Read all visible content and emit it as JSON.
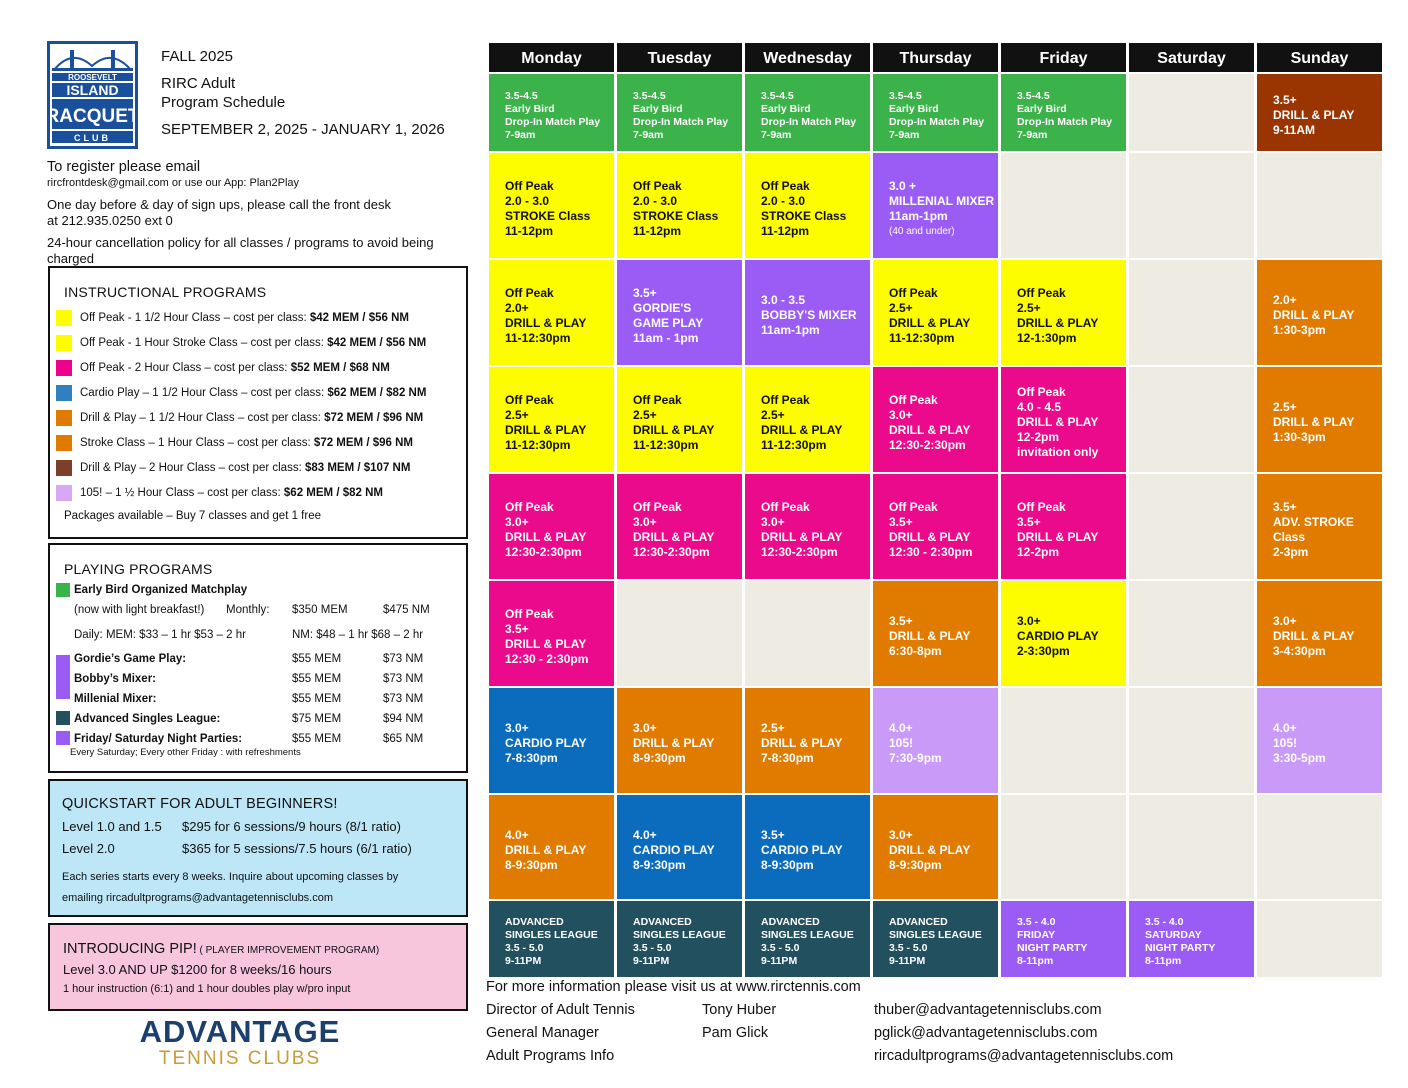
{
  "header": {
    "season": "FALL 2025",
    "program_line1": "RIRC Adult",
    "program_line2": "Program Schedule",
    "dates": "SEPTEMBER 2, 2025 - JANUARY 1, 2026"
  },
  "logo": {
    "line1": "ROOSEVELT",
    "line2": "ISLAND",
    "line3": "RACQUET",
    "line4": "CLUB"
  },
  "register": {
    "line1": "To register please email",
    "line2": "rircfrontdesk@gmail.com or use our App:  Plan2Play",
    "line3": "One day before & day of sign ups, please call the front desk",
    "line4": "at 212.935.0250 ext 0",
    "line5": "24-hour cancellation policy for all classes / programs to avoid being",
    "line6": "charged"
  },
  "instructional": {
    "title": "INSTRUCTIONAL PROGRAMS",
    "items": [
      {
        "color": "#fdfd00",
        "text": "Off Peak - 1 1/2 Hour Class – cost per class: ",
        "price": "$42 MEM / $56 NM"
      },
      {
        "color": "#fdfd00",
        "text": "Off Peak - 1 Hour Stroke Class – cost per class: ",
        "price": "$42 MEM / $56 NM"
      },
      {
        "color": "#ec008c",
        "text": "Off Peak - 2 Hour Class – cost per class: ",
        "price": "$52 MEM / $68 NM"
      },
      {
        "color": "#2f7fc1",
        "text": "Cardio Play – 1 1/2 Hour Class – cost per class: ",
        "price": "$62 MEM / $82 NM"
      },
      {
        "color": "#e07b00",
        "text": "Drill & Play – 1 1/2 Hour Class – cost per class:  ",
        "price": "$72 MEM / $96 NM"
      },
      {
        "color": "#e07b00",
        "text": "Stroke Class – 1  Hour Class – cost per class:  ",
        "price": "$72 MEM / $96 NM"
      },
      {
        "color": "#7b3f2a",
        "text": "Drill & Play – 2 Hour Class – cost per class: ",
        "price": "$83 MEM / $107 NM"
      },
      {
        "color": "#d7a8f5",
        "text": "105! – 1 ½ Hour Class – cost per class:  ",
        "price": "$62 MEM / $82  NM"
      }
    ],
    "packages": "Packages available – Buy 7 classes and get 1 free"
  },
  "playing": {
    "title": "PLAYING PROGRAMS",
    "early_bird": "Early Bird Organized Matchplay",
    "breakfast": "(now with light breakfast!)",
    "monthly_label": "Monthly:",
    "monthly_mem": "$350 MEM",
    "monthly_nm": "$475 NM",
    "daily_mem": "Daily: MEM: $33 – 1 hr  $53 – 2 hr",
    "daily_nm": "NM: $48 – 1 hr  $68 – 2 hr",
    "rows": [
      {
        "name": "Gordie’s Game Play:",
        "mem": "$55 MEM",
        "nm": "$73 NM"
      },
      {
        "name": "Bobby’s Mixer:",
        "mem": "$55 MEM",
        "nm": "$73 NM"
      },
      {
        "name": "Millenial Mixer:",
        "mem": "$55 MEM",
        "nm": "$73 NM"
      },
      {
        "name": "Advanced Singles League:",
        "mem": "$75 MEM",
        "nm": "$94 NM"
      },
      {
        "name": "Friday/ Saturday Night Parties:",
        "mem": "$55 MEM",
        "nm": "$65 NM"
      }
    ],
    "party_note": "Every Saturday; Every other Friday : with refreshments",
    "colors": {
      "early_bird": "#3cb34a",
      "mixer": "#9b5cf6",
      "league": "#22505f"
    }
  },
  "quickstart": {
    "title": "QUICKSTART FOR ADULT BEGINNERS!",
    "level1_label": "Level 1.0  and 1.5",
    "level1_price": "$295 for 6 sessions/9 hours (8/1 ratio)",
    "level2_label": "Level 2.0",
    "level2_price": "$365 for 5 sessions/7.5 hours (6/1 ratio)",
    "note1": "Each series starts every 8 weeks.  Inquire about upcoming classes  by",
    "note2": "emailing rircadultprograms@advantagetennisclubs.com",
    "bg": "#bde6f7"
  },
  "pip": {
    "title": "INTRODUCING PIP!",
    "subtitle": " ( PLAYER IMPROVEMENT PROGRAM)",
    "line1": "Level 3.0 AND UP  $1200 for 8 weeks/16 hours",
    "line2": "1 hour instruction (6:1) and  1 hour doubles play w/pro input",
    "bg": "#f7c6dc"
  },
  "advantage": {
    "word1": "ADVANTAGE",
    "word2": "TENNIS CLUBS"
  },
  "days": [
    "Monday",
    "Tuesday",
    "Wednesday",
    "Thursday",
    "Friday",
    "Saturday",
    "Sunday"
  ],
  "schedule": [
    [
      {
        "lines": [
          "3.5-4.5",
          "Early Bird",
          "Drop-In Match Play",
          "7-9am"
        ],
        "bg": "#3cb34a",
        "fg": "w",
        "size": "sm"
      },
      {
        "lines": [
          "Off Peak",
          "2.0 - 3.0",
          "STROKE Class",
          "11-12pm"
        ],
        "bg": "#fdfd00"
      },
      {
        "lines": [
          "Off Peak",
          "2.0+",
          "DRILL & PLAY",
          "11-12:30pm"
        ],
        "bg": "#fdfd00"
      },
      {
        "lines": [
          "Off Peak",
          "2.5+",
          "DRILL & PLAY",
          "11-12:30pm"
        ],
        "bg": "#fdfd00"
      },
      {
        "lines": [
          "Off Peak",
          "3.0+",
          "DRILL & PLAY",
          "12:30-2:30pm"
        ],
        "bg": "#ec0a8c",
        "fg": "w"
      },
      {
        "lines": [
          "Off Peak",
          "3.5+",
          "DRILL & PLAY",
          "12:30 - 2:30pm"
        ],
        "bg": "#ec0a8c",
        "fg": "w"
      },
      {
        "lines": [
          "3.0+",
          "CARDIO PLAY",
          "7-8:30pm"
        ],
        "bg": "#0b6bbd",
        "fg": "w"
      },
      {
        "lines": [
          "4.0+",
          "DRILL & PLAY",
          "8-9:30pm"
        ],
        "bg": "#e07b00",
        "fg": "w"
      },
      {
        "lines": [
          "ADVANCED",
          "SINGLES LEAGUE",
          "3.5 - 5.0",
          "9-11PM"
        ],
        "bg": "#22505f",
        "fg": "w",
        "size": "sm"
      }
    ],
    [
      {
        "lines": [
          "3.5-4.5",
          "Early Bird",
          "Drop-In Match Play",
          "7-9am"
        ],
        "bg": "#3cb34a",
        "fg": "w",
        "size": "sm"
      },
      {
        "lines": [
          "Off Peak",
          "2.0 - 3.0",
          "STROKE Class",
          "11-12pm"
        ],
        "bg": "#fdfd00"
      },
      {
        "lines": [
          "3.5+",
          "GORDIE'S",
          "GAME PLAY",
          "11am - 1pm"
        ],
        "bg": "#9b5cf6",
        "fg": "w"
      },
      {
        "lines": [
          "Off Peak",
          "2.5+",
          "DRILL & PLAY",
          "11-12:30pm"
        ],
        "bg": "#fdfd00"
      },
      {
        "lines": [
          "Off Peak",
          "3.0+",
          "DRILL & PLAY",
          "12:30-2:30pm"
        ],
        "bg": "#ec0a8c",
        "fg": "w"
      },
      {
        "lines": [],
        "bg": "#eeebe3"
      },
      {
        "lines": [
          "3.0+",
          "DRILL & PLAY",
          "8-9:30pm"
        ],
        "bg": "#e07b00",
        "fg": "w"
      },
      {
        "lines": [
          "4.0+",
          "CARDIO PLAY",
          "8-9:30pm"
        ],
        "bg": "#0b6bbd",
        "fg": "w"
      },
      {
        "lines": [
          "ADVANCED",
          "SINGLES LEAGUE",
          "3.5 - 5.0",
          "9-11PM"
        ],
        "bg": "#22505f",
        "fg": "w",
        "size": "sm"
      }
    ],
    [
      {
        "lines": [
          "3.5-4.5",
          "Early Bird",
          "Drop-In Match Play",
          "7-9am"
        ],
        "bg": "#3cb34a",
        "fg": "w",
        "size": "sm"
      },
      {
        "lines": [
          "Off Peak",
          "2.0 - 3.0",
          "STROKE Class",
          "11-12pm"
        ],
        "bg": "#fdfd00"
      },
      {
        "lines": [
          "3.0 - 3.5",
          "BOBBY'S MIXER",
          "11am-1pm"
        ],
        "bg": "#9b5cf6",
        "fg": "w"
      },
      {
        "lines": [
          "Off Peak",
          "2.5+",
          "DRILL & PLAY",
          "11-12:30pm"
        ],
        "bg": "#fdfd00"
      },
      {
        "lines": [
          "Off Peak",
          "3.0+",
          "DRILL & PLAY",
          "12:30-2:30pm"
        ],
        "bg": "#ec0a8c",
        "fg": "w"
      },
      {
        "lines": [],
        "bg": "#eeebe3"
      },
      {
        "lines": [
          "2.5+",
          "DRILL & PLAY",
          "7-8:30pm"
        ],
        "bg": "#e07b00",
        "fg": "w"
      },
      {
        "lines": [
          "3.5+",
          "CARDIO PLAY",
          "8-9:30pm"
        ],
        "bg": "#0b6bbd",
        "fg": "w"
      },
      {
        "lines": [
          "ADVANCED",
          "SINGLES LEAGUE",
          "3.5 - 5.0",
          "9-11PM"
        ],
        "bg": "#22505f",
        "fg": "w",
        "size": "sm"
      }
    ],
    [
      {
        "lines": [
          "3.5-4.5",
          "Early Bird",
          "Drop-In Match Play",
          "7-9am"
        ],
        "bg": "#3cb34a",
        "fg": "w",
        "size": "sm"
      },
      {
        "lines": [
          "3.0 +",
          "MILLENIAL MIXER",
          "11am-1pm",
          "(40 and under)"
        ],
        "bg": "#9b5cf6",
        "fg": "w",
        "tiny_last": true
      },
      {
        "lines": [
          "Off Peak",
          "2.5+",
          "DRILL & PLAY",
          "11-12:30pm"
        ],
        "bg": "#fdfd00"
      },
      {
        "lines": [
          "Off Peak",
          "3.0+",
          "DRILL & PLAY",
          "12:30-2:30pm"
        ],
        "bg": "#ec0a8c",
        "fg": "w"
      },
      {
        "lines": [
          "Off Peak",
          "3.5+",
          "DRILL & PLAY",
          "12:30 - 2:30pm"
        ],
        "bg": "#ec0a8c",
        "fg": "w"
      },
      {
        "lines": [
          "3.5+",
          "DRILL & PLAY",
          "6:30-8pm"
        ],
        "bg": "#e07b00",
        "fg": "w"
      },
      {
        "lines": [
          "4.0+",
          "105!",
          "7:30-9pm"
        ],
        "bg": "#c99af7",
        "fg": "w"
      },
      {
        "lines": [
          "3.0+",
          "DRILL & PLAY",
          "8-9:30pm"
        ],
        "bg": "#e07b00",
        "fg": "w"
      },
      {
        "lines": [
          "ADVANCED",
          "SINGLES LEAGUE",
          "3.5 - 5.0",
          "9-11PM"
        ],
        "bg": "#22505f",
        "fg": "w",
        "size": "sm"
      }
    ],
    [
      {
        "lines": [
          "3.5-4.5",
          "Early Bird",
          "Drop-In Match Play",
          "7-9am"
        ],
        "bg": "#3cb34a",
        "fg": "w",
        "size": "sm"
      },
      {
        "lines": [],
        "bg": "#eeebe3"
      },
      {
        "lines": [
          "Off Peak",
          "2.5+",
          "DRILL & PLAY",
          "12-1:30pm"
        ],
        "bg": "#fdfd00"
      },
      {
        "lines": [
          "Off Peak",
          "4.0 - 4.5",
          "DRILL & PLAY",
          "12-2pm",
          "invitation only"
        ],
        "bg": "#ec0a8c",
        "fg": "w"
      },
      {
        "lines": [
          "Off Peak",
          "3.5+",
          "DRILL & PLAY",
          "12-2pm"
        ],
        "bg": "#ec0a8c",
        "fg": "w"
      },
      {
        "lines": [
          "3.0+",
          "CARDIO PLAY",
          "2-3:30pm"
        ],
        "bg": "#fdfd00"
      },
      {
        "lines": [],
        "bg": "#eeebe3"
      },
      {
        "lines": [],
        "bg": "#eeebe3"
      },
      {
        "lines": [
          "3.5 - 4.0",
          "FRIDAY",
          "NIGHT PARTY",
          "8-11pm"
        ],
        "bg": "#9b5cf6",
        "fg": "w",
        "size": "sm"
      }
    ],
    [
      {
        "lines": [],
        "bg": "#eeebe3"
      },
      {
        "lines": [],
        "bg": "#eeebe3"
      },
      {
        "lines": [],
        "bg": "#eeebe3"
      },
      {
        "lines": [],
        "bg": "#eeebe3"
      },
      {
        "lines": [],
        "bg": "#eeebe3"
      },
      {
        "lines": [],
        "bg": "#eeebe3"
      },
      {
        "lines": [],
        "bg": "#eeebe3"
      },
      {
        "lines": [],
        "bg": "#eeebe3"
      },
      {
        "lines": [
          "3.5 - 4.0",
          "SATURDAY",
          "NIGHT PARTY",
          "8-11pm"
        ],
        "bg": "#9b5cf6",
        "fg": "w",
        "size": "sm"
      }
    ],
    [
      {
        "lines": [
          "3.5+",
          "DRILL & PLAY",
          "9-11AM"
        ],
        "bg": "#9a3400",
        "fg": "w"
      },
      {
        "lines": [],
        "bg": "#eeebe3"
      },
      {
        "lines": [
          "2.0+",
          "DRILL & PLAY",
          "1:30-3pm"
        ],
        "bg": "#e07b00",
        "fg": "w"
      },
      {
        "lines": [
          "2.5+",
          "DRILL & PLAY",
          "1:30-3pm"
        ],
        "bg": "#e07b00",
        "fg": "w"
      },
      {
        "lines": [
          "3.5+",
          "ADV. STROKE",
          "Class",
          "2-3pm"
        ],
        "bg": "#e07b00",
        "fg": "w"
      },
      {
        "lines": [
          "3.0+",
          "DRILL & PLAY",
          "3-4:30pm"
        ],
        "bg": "#e07b00",
        "fg": "w"
      },
      {
        "lines": [
          "4.0+",
          "105!",
          "3:30-5pm"
        ],
        "bg": "#c99af7",
        "fg": "w"
      },
      {
        "lines": [],
        "bg": "#eeebe3"
      },
      {
        "lines": [],
        "bg": "#eeebe3"
      }
    ]
  ],
  "footer": {
    "more_info": "For more information please visit us at www.rirctennis.com",
    "contacts": [
      {
        "role": "Director of Adult Tennis",
        "name": "Tony Huber",
        "email": "thuber@advantagetennisclubs.com"
      },
      {
        "role": "General Manager",
        "name": "Pam Glick",
        "email": "pglick@advantagetennisclubs.com"
      },
      {
        "role": "Adult Programs Info",
        "name": "",
        "email": "rircadultprograms@advantagetennisclubs.com"
      }
    ]
  }
}
